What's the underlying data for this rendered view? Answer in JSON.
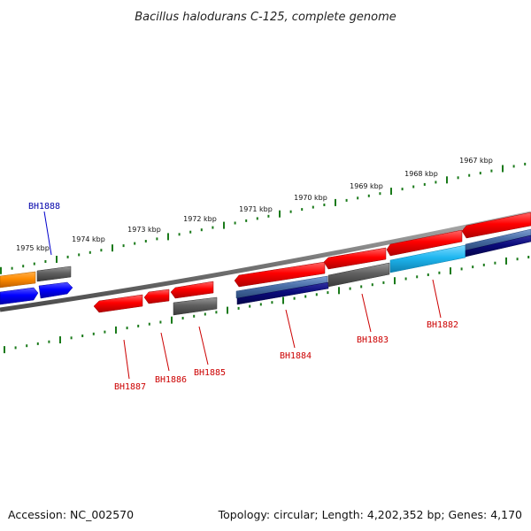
{
  "title": "Bacillus halodurans C-125, complete genome",
  "accession": "Accession: NC_002570",
  "topology": "Topology: circular; Length: 4,202,352 bp; Genes: 4,170",
  "kbp_labels": [
    "1975 kbp",
    "1974 kbp",
    "1973 kbp",
    "1972 kbp",
    "1971 kbp",
    "1970 kbp",
    "1969 kbp",
    "1968 kbp",
    "1967 kbp"
  ],
  "gene_labels": {
    "bh1888": "BH1888",
    "bh1887": "BH1887",
    "bh1886": "BH1886",
    "bh1885": "BH1885",
    "bh1884": "BH1884",
    "bh1883": "BH1883",
    "bh1882": "BH1882"
  },
  "colors": {
    "backbone": "#777777",
    "tick": "#1a7a1a",
    "gene_red": "#ff0000",
    "gene_gray": "#5f5f5f",
    "gene_blue": "#0000ff",
    "gene_orange": "#ff8c00",
    "gene_cyan": "#1fb7f0",
    "gene_steel": "#4a6fa8",
    "gene_navy": "#0a0a7a",
    "label_red": "#cc0000",
    "label_blue": "#0000aa"
  }
}
